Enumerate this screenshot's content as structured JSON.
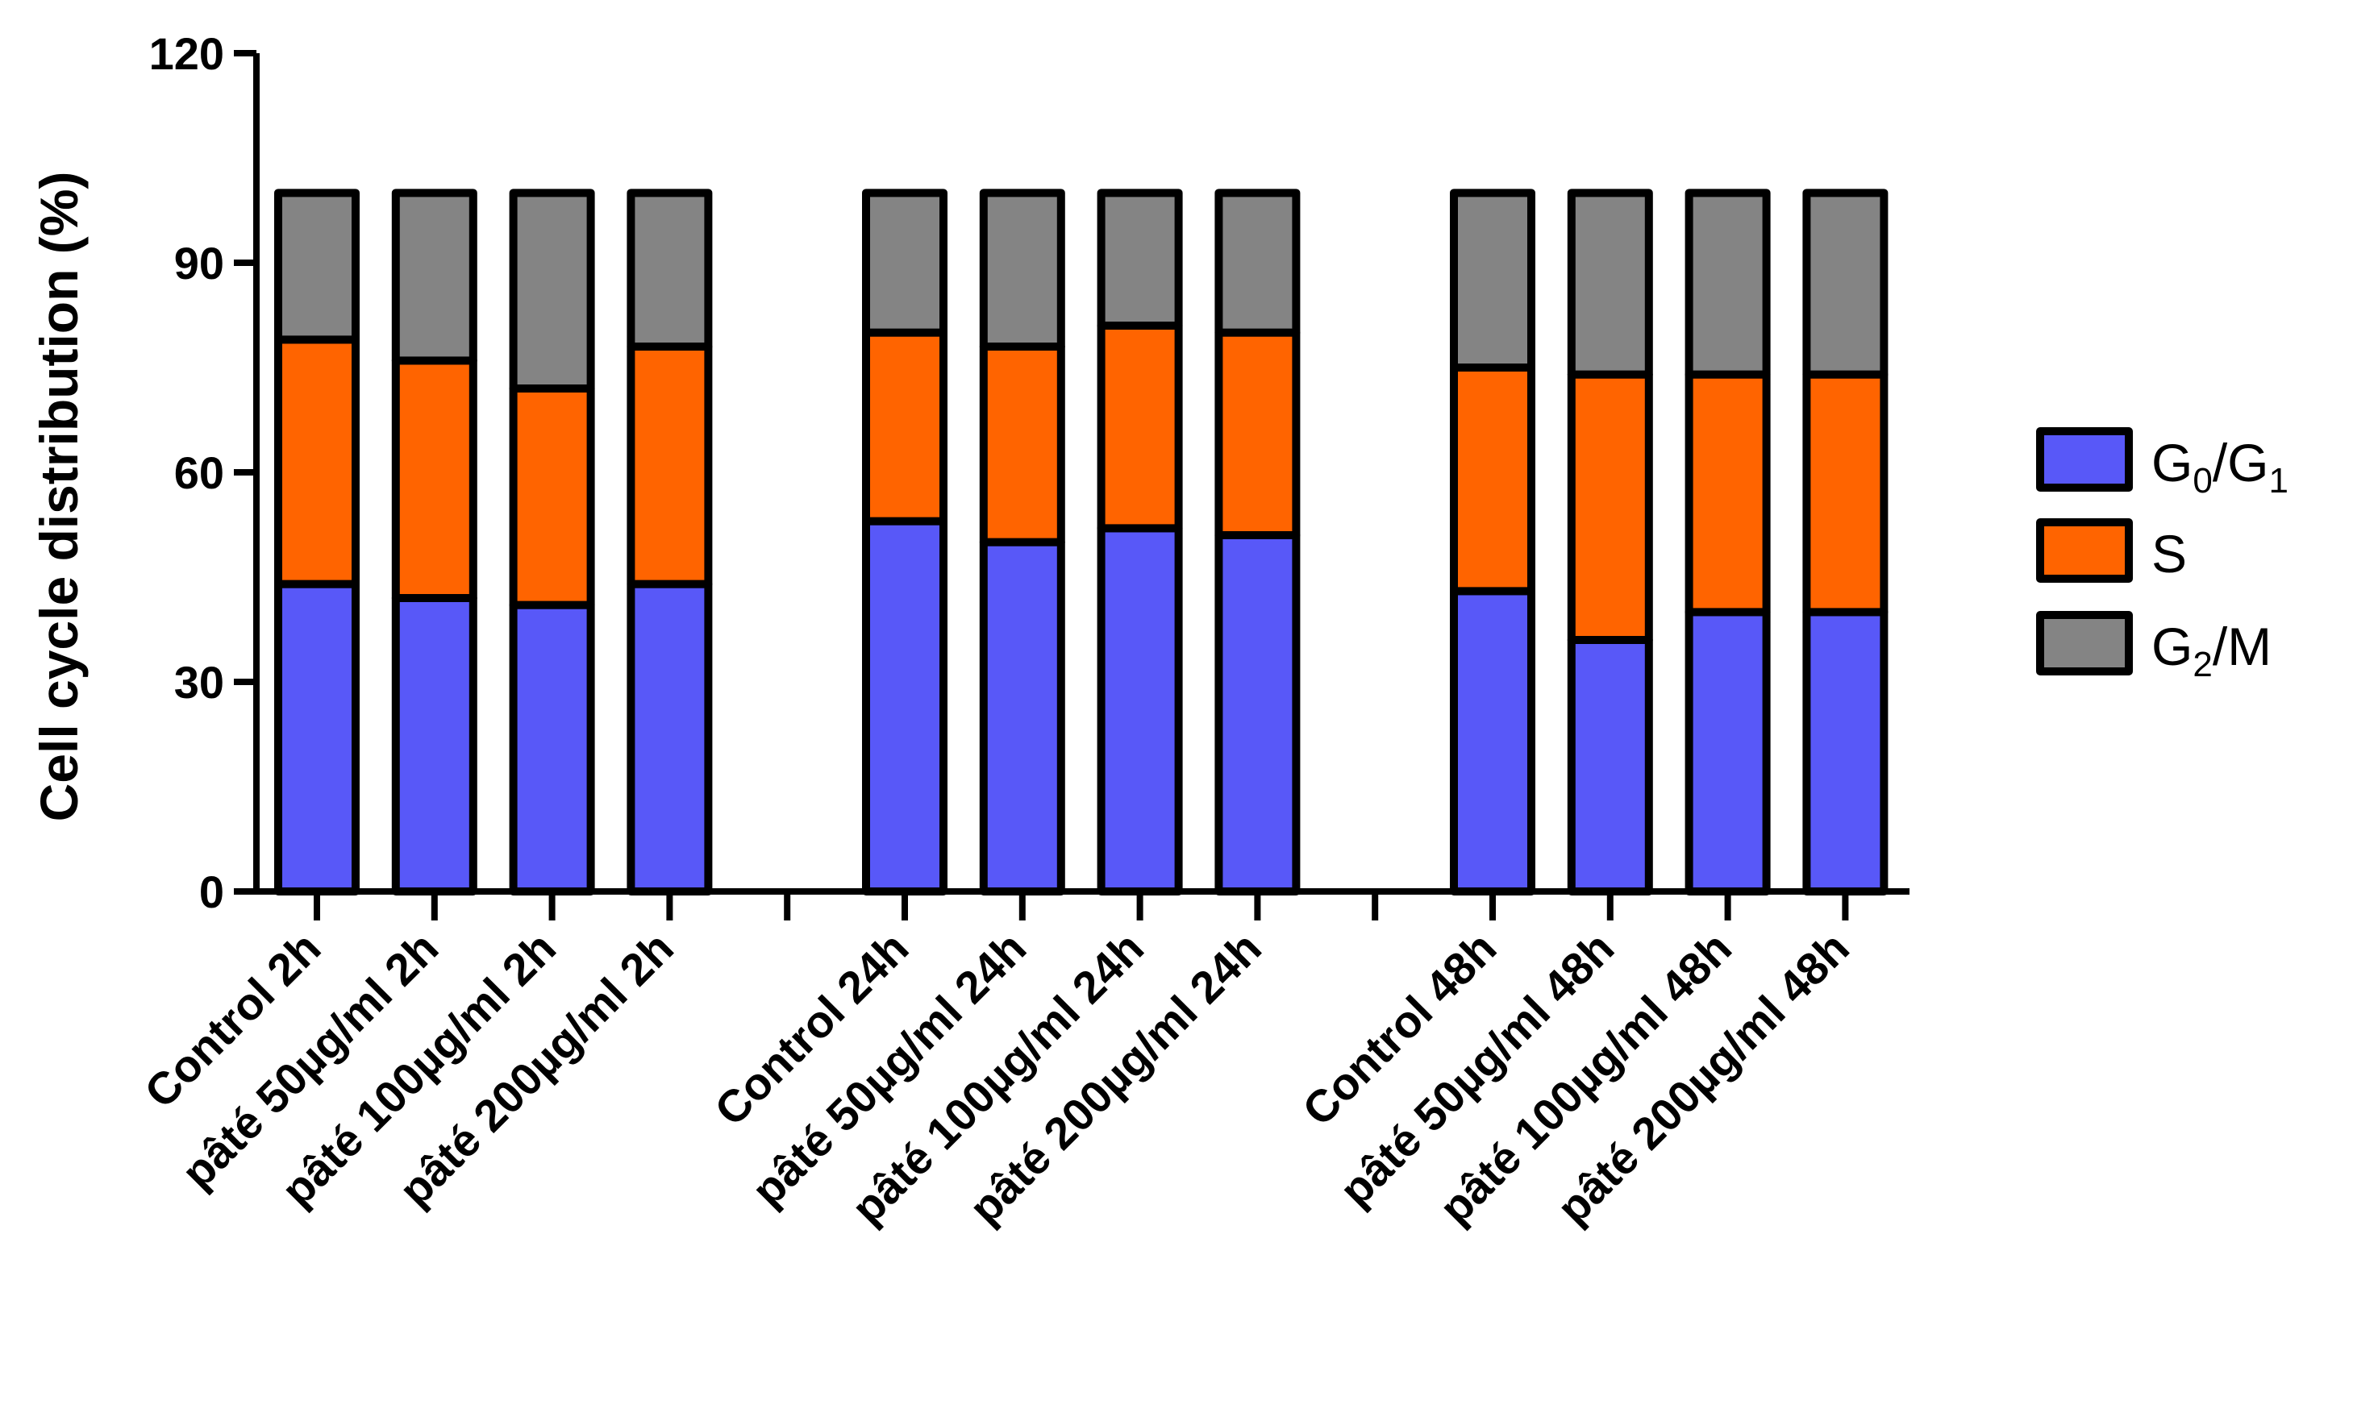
{
  "chart_data": {
    "type": "bar",
    "stacked": true,
    "title": "",
    "xlabel": "",
    "ylabel": "Cell cycle distribution (%)",
    "ylim": [
      0,
      120
    ],
    "yticks": [
      0,
      30,
      60,
      90,
      120
    ],
    "categories": [
      "Control 2h",
      "pâté 50µg/ml 2h",
      "pâté 100µg/ml 2h",
      "pâté 200µg/ml 2h",
      "",
      "Control 24h",
      "pâté 50µg/ml 24h",
      "pâté 100µg/ml 24h",
      "pâté 200µg/ml 24h",
      "",
      "Control 48h",
      "pâté 50µg/ml 48h",
      "pâté 100µg/ml 48h",
      "pâté 200µg/ml 48h"
    ],
    "series": [
      {
        "name": "G0/G1",
        "color": "#5858F8",
        "values": [
          44,
          42,
          41,
          44,
          null,
          53,
          50,
          52,
          51,
          null,
          43,
          36,
          40,
          40
        ]
      },
      {
        "name": "S",
        "color": "#FF6400",
        "values": [
          35,
          34,
          31,
          34,
          null,
          27,
          28,
          29,
          29,
          null,
          32,
          38,
          34,
          34
        ]
      },
      {
        "name": "G2/M",
        "color": "#848484",
        "values": [
          21,
          24,
          28,
          22,
          null,
          20,
          22,
          19,
          20,
          null,
          25,
          26,
          26,
          26
        ]
      }
    ],
    "legend": {
      "placement": "right",
      "entries": [
        {
          "main": "G",
          "sub": "0",
          "mid": "/G",
          "sub2": "1",
          "color": "#5858F8"
        },
        {
          "main": "S",
          "sub": "",
          "mid": "",
          "sub2": "",
          "color": "#FF6400"
        },
        {
          "main": "G",
          "sub": "2",
          "mid": "/M",
          "sub2": "",
          "color": "#848484"
        }
      ]
    }
  }
}
